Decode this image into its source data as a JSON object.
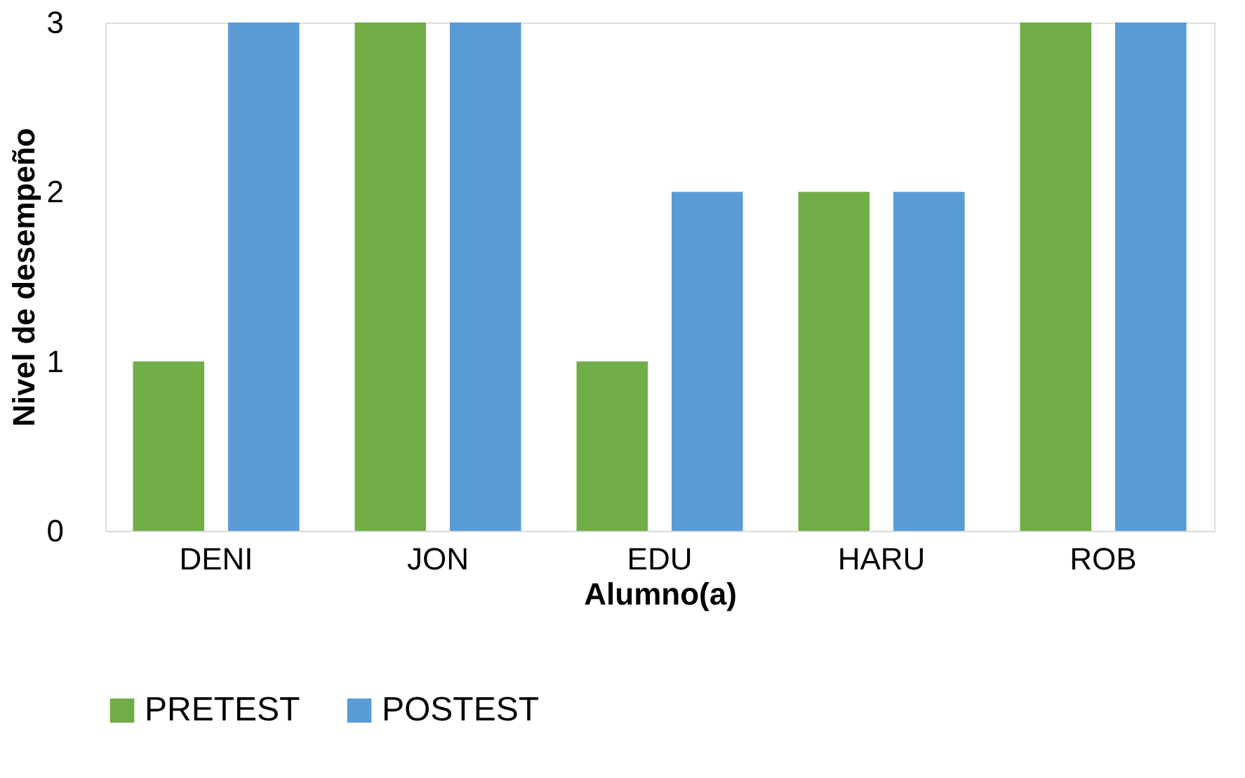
{
  "chart_data": {
    "type": "bar",
    "xlabel": "Alumno(a)",
    "ylabel": "Nivel de desempeño",
    "categories": [
      "DENI",
      "JON",
      "EDU",
      "HARU",
      "ROB"
    ],
    "series": [
      {
        "name": "PRETEST",
        "color": "#70ad47",
        "values": [
          1,
          3,
          1,
          2,
          3
        ]
      },
      {
        "name": "POSTEST",
        "color": "#5b9bd5",
        "values": [
          3,
          3,
          2,
          2,
          3
        ]
      }
    ],
    "ylim": [
      0,
      3
    ],
    "yticks": [
      0,
      1,
      2,
      3
    ],
    "grid": false,
    "legend": "bottom"
  }
}
